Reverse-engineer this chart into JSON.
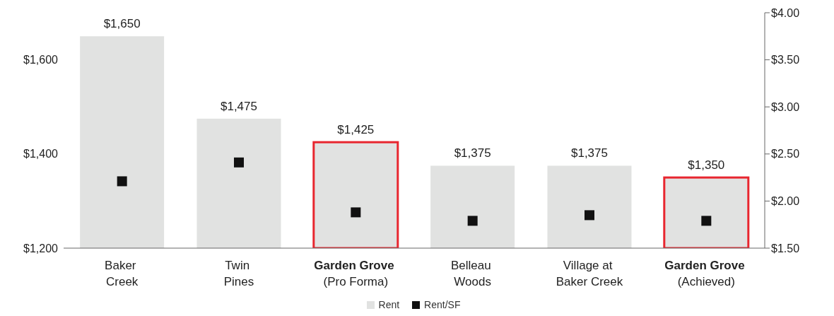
{
  "chart_data": {
    "type": "bar",
    "categories": [
      "Baker\nCreek",
      "Twin\nPines",
      "Garden Grove\n(Pro Forma)",
      "Belleau\nWoods",
      "Village at\nBaker Creek",
      "Garden Grove\n(Achieved)"
    ],
    "series": [
      {
        "name": "Rent",
        "color": "#e1e2e1",
        "values": [
          1650,
          1475,
          1425,
          1375,
          1375,
          1350
        ],
        "value_labels": [
          "$1,650",
          "$1,475",
          "$1,425",
          "$1,375",
          "$1,375",
          "$1,350"
        ]
      },
      {
        "name": "Rent/SF",
        "type": "scatter",
        "axis": "y2",
        "color": "#111111",
        "marker": "square",
        "values": [
          2.21,
          2.41,
          1.88,
          1.79,
          1.85,
          1.79
        ]
      }
    ],
    "ylim": [
      1200,
      1700
    ],
    "yticks": [
      {
        "value": 1200,
        "label": "$1,200"
      },
      {
        "value": 1400,
        "label": "$1,400"
      },
      {
        "value": 1600,
        "label": "$1,600"
      }
    ],
    "y2lim": [
      1.5,
      4.0
    ],
    "y2ticks": [
      {
        "value": 1.5,
        "label": "$1.50"
      },
      {
        "value": 2.0,
        "label": "$2.00"
      },
      {
        "value": 2.5,
        "label": "$2.50"
      },
      {
        "value": 3.0,
        "label": "$3.00"
      },
      {
        "value": 3.5,
        "label": "$3.50"
      },
      {
        "value": 4.0,
        "label": "$4.00"
      }
    ],
    "grid": false,
    "legend": "bottom"
  }
}
